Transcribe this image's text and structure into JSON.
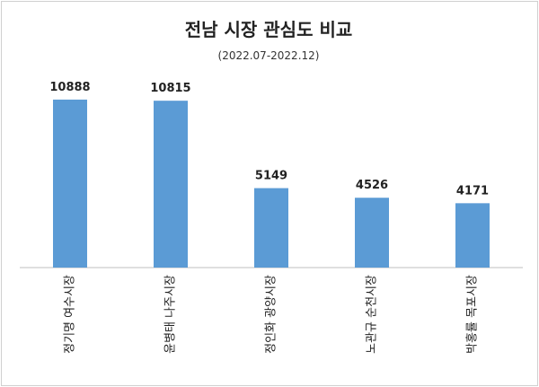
{
  "chart_data": {
    "type": "bar",
    "title": "전남 시장 관심도 비교",
    "subtitle": "(2022.07-2022.12)",
    "categories": [
      "정기명 여수시장",
      "윤병태 나주시장",
      "정인화 광양시장",
      "노관규 순천시장",
      "박홍률 목포시장"
    ],
    "values": [
      10888,
      10815,
      5149,
      4526,
      4171
    ],
    "ylim": [
      0,
      11000
    ],
    "grid": false,
    "legend": "none",
    "bar_color": "#5B9BD5",
    "axis_color": "#bfbfbf"
  }
}
